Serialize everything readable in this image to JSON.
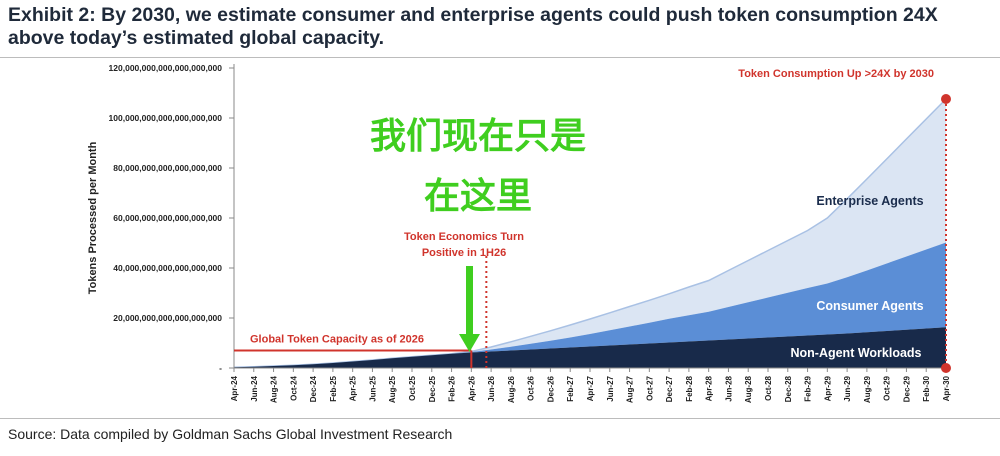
{
  "title": "Exhibit 2: By 2030, we estimate consumer and enterprise agents could push token consumption 24X above today’s estimated global capacity.",
  "source": "Source: Data compiled by Goldman Sachs Global Investment Research",
  "colors": {
    "non_agent": "#182a4a",
    "consumer": "#5b8ed6",
    "enterprise": "#dbe5f3",
    "enterprise_line": "#a9c1e4",
    "annotation_red": "#d0342c",
    "overlay_green": "#3fce1f"
  },
  "overlay_text": {
    "line1": "我们现在只是",
    "line2": "在这里"
  },
  "chart_data": {
    "type": "area",
    "stacked": true,
    "ylabel": "Tokens Processed per Month",
    "ylim": [
      0,
      120000000000000000000
    ],
    "y_ticks": [
      0,
      20000000000000000000,
      40000000000000000000,
      60000000000000000000,
      80000000000000000000,
      100000000000000000000,
      120000000000000000000
    ],
    "y_tick_labels": [
      "-",
      "20,000,000,000,000,000,000",
      "40,000,000,000,000,000,000",
      "60,000,000,000,000,000,000",
      "80,000,000,000,000,000,000",
      "100,000,000,000,000,000,000",
      "120,000,000,000,000,000,000"
    ],
    "x_tick_labels": [
      "Apr-24",
      "Jun-24",
      "Aug-24",
      "Oct-24",
      "Dec-24",
      "Feb-25",
      "Apr-25",
      "Jun-25",
      "Aug-25",
      "Oct-25",
      "Dec-25",
      "Feb-26",
      "Apr-26",
      "Jun-26",
      "Aug-26",
      "Oct-26",
      "Dec-26",
      "Feb-27",
      "Apr-27",
      "Jun-27",
      "Aug-27",
      "Oct-27",
      "Dec-27",
      "Feb-28",
      "Apr-28",
      "Jun-28",
      "Aug-28",
      "Oct-28",
      "Dec-28",
      "Feb-29",
      "Apr-29",
      "Jun-29",
      "Aug-29",
      "Oct-29",
      "Dec-29",
      "Feb-30",
      "Apr-30"
    ],
    "series": [
      {
        "name": "Non-Agent Workloads",
        "values": [
          0.3,
          0.5,
          0.8,
          1.1,
          1.5,
          2.0,
          2.6,
          3.2,
          3.9,
          4.5,
          5.1,
          5.7,
          6.2,
          6.6,
          7.0,
          7.4,
          7.8,
          8.2,
          8.6,
          9.0,
          9.4,
          9.8,
          10.2,
          10.6,
          11.0,
          11.4,
          11.8,
          12.2,
          12.6,
          13.0,
          13.4,
          13.8,
          14.3,
          14.8,
          15.3,
          15.8,
          16.3
        ]
      },
      {
        "name": "Consumer Agents",
        "values": [
          0,
          0,
          0,
          0,
          0,
          0,
          0,
          0,
          0,
          0,
          0,
          0,
          0.2,
          0.8,
          1.5,
          2.3,
          3.1,
          4.0,
          5.0,
          6.1,
          7.2,
          8.3,
          9.5,
          10.5,
          11.5,
          13.0,
          14.5,
          16.0,
          17.5,
          19.0,
          20.4,
          22.5,
          24.7,
          27.0,
          29.3,
          31.6,
          33.9
        ]
      },
      {
        "name": "Enterprise Agents",
        "values": [
          0,
          0,
          0,
          0,
          0,
          0,
          0,
          0,
          0,
          0,
          0,
          0,
          0.2,
          1.0,
          2.0,
          3.0,
          4.0,
          5.0,
          6.0,
          7.0,
          8.0,
          9.0,
          10.0,
          11.3,
          12.5,
          14.6,
          16.7,
          18.8,
          20.9,
          23.0,
          26.2,
          31.4,
          36.6,
          41.8,
          47.0,
          52.2,
          57.4
        ]
      }
    ],
    "series_labels": [
      "Non-Agent Workloads",
      "Consumer Agents",
      "Enterprise Agents"
    ],
    "capacity_label": "Global Token Capacity as of 2026",
    "capacity_value": 7000000000000000000,
    "capacity_end_category": "Apr-26",
    "turn_label_line1": "Token Economics Turn",
    "turn_label_line2": "Positive in 1H26",
    "turn_category": "Apr-26",
    "peak_label": "Token Consumption Up >24X by 2030",
    "grid": false,
    "legend": "none"
  }
}
